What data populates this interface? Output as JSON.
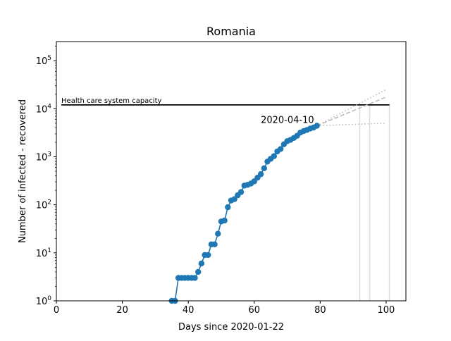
{
  "chart_data": {
    "type": "line",
    "title": "Romania",
    "xlabel": "Days since 2020-01-22",
    "ylabel": "Number of infected - recovered",
    "xlim": [
      0,
      106
    ],
    "ylim": [
      1,
      250000
    ],
    "xscale": "linear",
    "yscale": "log",
    "grid": false,
    "xticks": [
      0,
      20,
      40,
      60,
      80,
      100
    ],
    "xtick_labels": [
      "0",
      "20",
      "40",
      "60",
      "80",
      "100"
    ],
    "yticks": [
      1,
      10,
      100,
      1000,
      10000,
      100000
    ],
    "ytick_labels": [
      "10^0",
      "10^1",
      "10^2",
      "10^3",
      "10^4",
      "10^5"
    ],
    "capacity": {
      "label": "Health care system capacity",
      "value": 12000,
      "color": "#000000"
    },
    "date_annotation": {
      "text": "2020-04-10",
      "x": 79
    },
    "series": [
      {
        "color": "#1f77b4",
        "style": "line-markers",
        "x": [
          35,
          36,
          37,
          38,
          39,
          40,
          41,
          42,
          43,
          44,
          45,
          46,
          47,
          48,
          49,
          50,
          51,
          52,
          53,
          54,
          55,
          56,
          57,
          58,
          59,
          60,
          61,
          62,
          63,
          64,
          65,
          66,
          67,
          68,
          69,
          70,
          71,
          72,
          73,
          74,
          75,
          76,
          77,
          78,
          79
        ],
        "y": [
          1,
          1,
          3,
          3,
          3,
          3,
          3,
          3,
          4,
          6,
          9,
          9,
          15,
          15,
          25,
          45,
          47,
          89,
          123,
          131,
          158,
          184,
          251,
          260,
          277,
          308,
          367,
          433,
          576,
          794,
          906,
          1029,
          1292,
          1452,
          1815,
          2109,
          2245,
          2460,
          2738,
          3183,
          3428,
          3613,
          3864,
          4057,
          4417
        ]
      },
      {
        "color": "#bbbbbb",
        "style": "dotted",
        "x": [
          79,
          100
        ],
        "y": [
          4417,
          25000
        ]
      },
      {
        "color": "#bbbbbb",
        "style": "dashed",
        "x": [
          79,
          100
        ],
        "y": [
          4417,
          17500
        ]
      },
      {
        "color": "#bbbbbb",
        "style": "dotted",
        "x": [
          79,
          100
        ],
        "y": [
          4417,
          5000
        ]
      }
    ],
    "vlines": [
      {
        "x": 92,
        "color": "#dddddd"
      },
      {
        "x": 95,
        "color": "#dddddd"
      },
      {
        "x": 101,
        "color": "#dddddd"
      }
    ]
  }
}
